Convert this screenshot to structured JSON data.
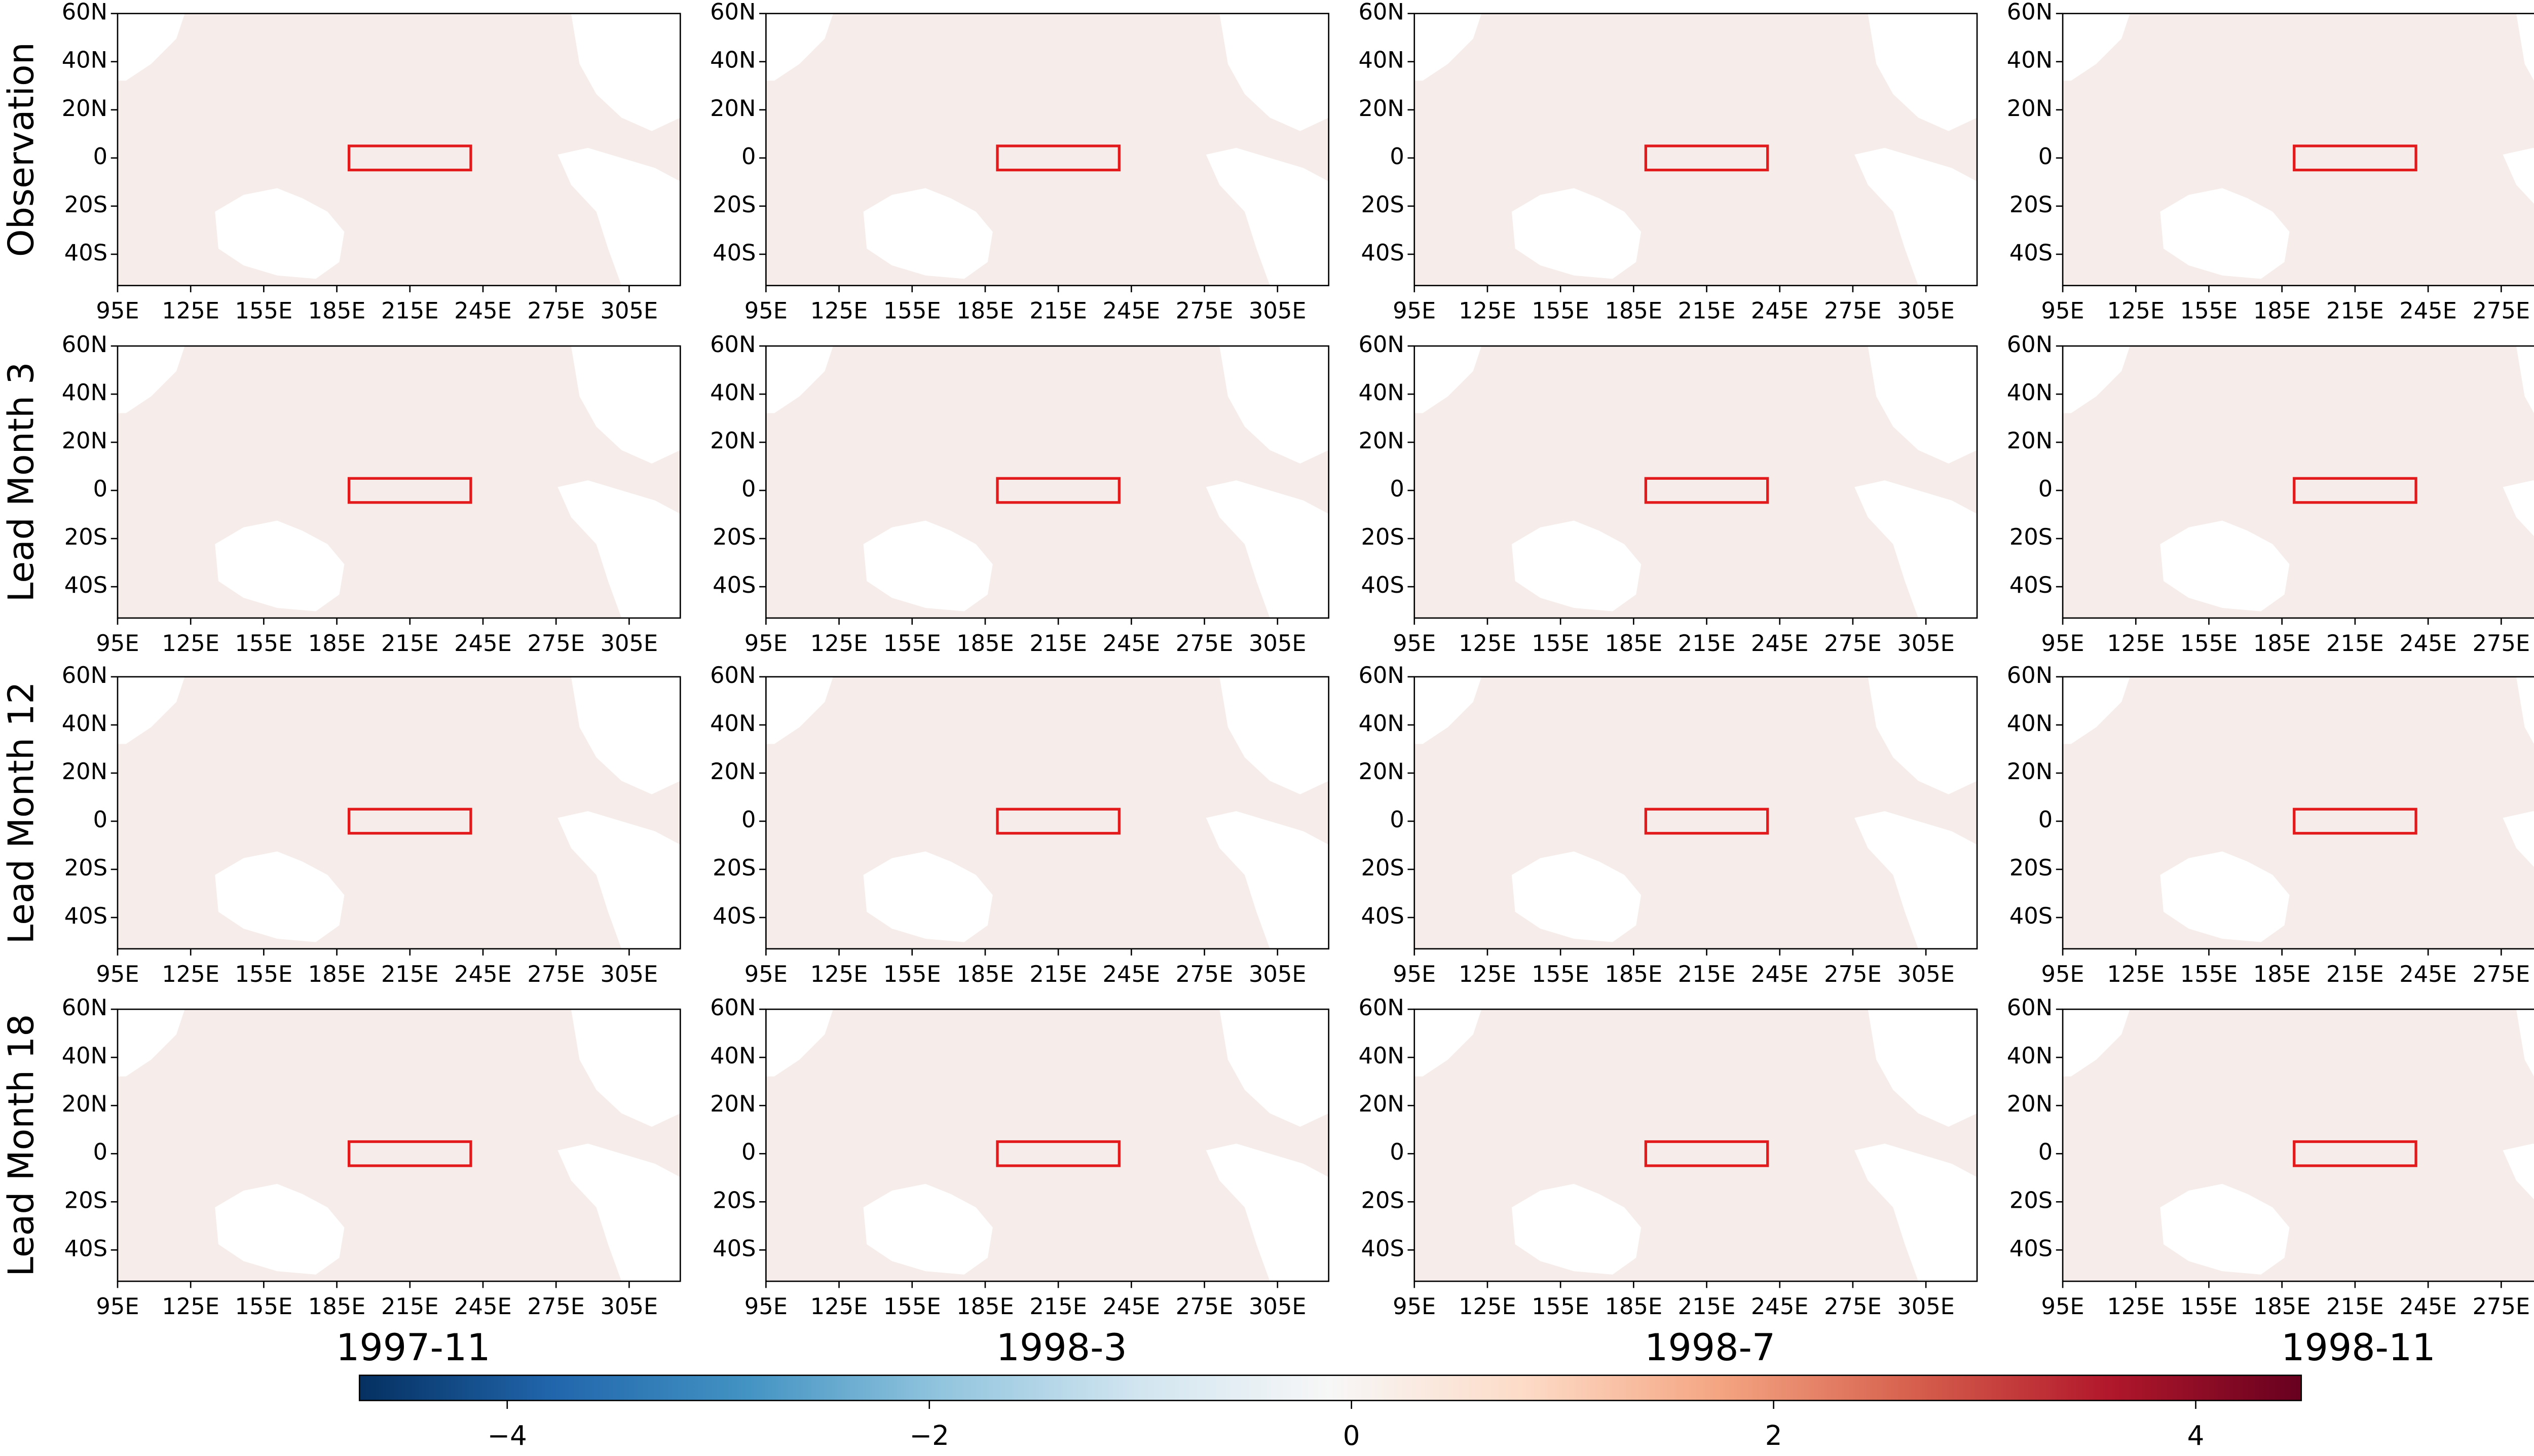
{
  "chart_data": {
    "type": "map-grid",
    "rows": [
      "Observation",
      "Lead Month 3",
      "Lead Month 12",
      "Lead Month 18"
    ],
    "columns": [
      "1997-11",
      "1998-3",
      "1998-7",
      "1998-11"
    ],
    "xlim": [
      95,
      326
    ],
    "xticks": [
      {
        "value": 95,
        "label": "95E"
      },
      {
        "value": 125,
        "label": "125E"
      },
      {
        "value": 155,
        "label": "155E"
      },
      {
        "value": 185,
        "label": "185E"
      },
      {
        "value": 215,
        "label": "215E"
      },
      {
        "value": 245,
        "label": "245E"
      },
      {
        "value": 275,
        "label": "275E"
      },
      {
        "value": 305,
        "label": "305E"
      }
    ],
    "ylim": [
      -53,
      60
    ],
    "yticks": [
      {
        "value": 60,
        "label": "60N"
      },
      {
        "value": 40,
        "label": "40N"
      },
      {
        "value": 20,
        "label": "20N"
      },
      0,
      {
        "value": -20,
        "label": "20S"
      },
      {
        "value": -40,
        "label": "40S"
      }
    ],
    "box": {
      "lon": [
        190,
        240
      ],
      "lat": [
        -5,
        5
      ],
      "color": "#e31a1c"
    },
    "colorbar": {
      "lim": [
        -4.7,
        4.5
      ],
      "ticks": [
        {
          "value": -4,
          "label": "−4"
        },
        {
          "value": -2,
          "label": "−2"
        },
        0,
        2,
        4
      ],
      "colormap": [
        "#053061",
        "#2166ac",
        "#4393c3",
        "#92c5de",
        "#d1e5f0",
        "#f7f7f7",
        "#fddbc7",
        "#f4a582",
        "#d6604d",
        "#b2182b",
        "#67001f"
      ]
    }
  }
}
